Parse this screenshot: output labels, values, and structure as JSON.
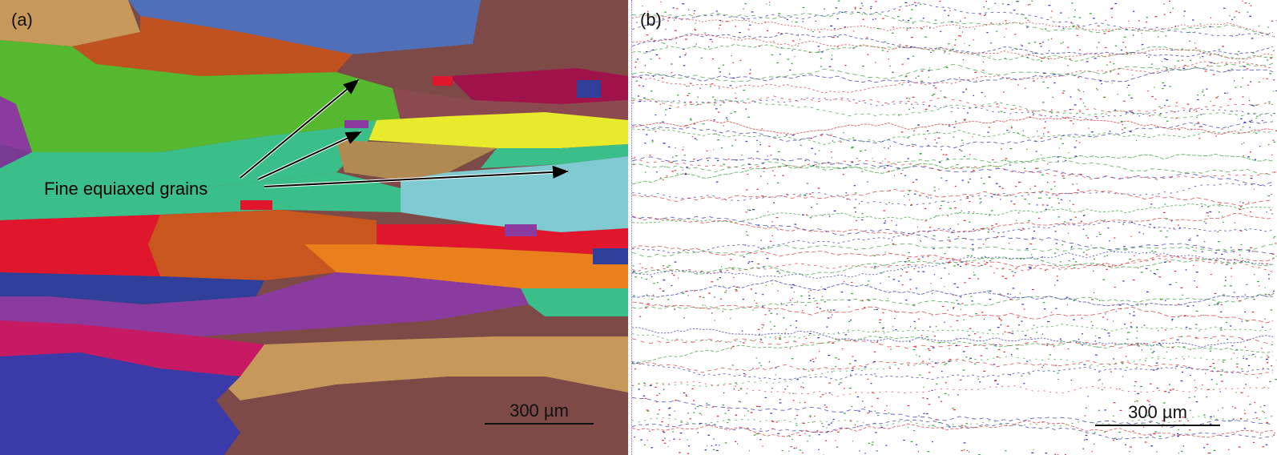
{
  "panel_a": {
    "label": "(a)",
    "annotation": "Fine equiaxed grains",
    "scale_bar": "300 µm",
    "grain_colors": [
      "#4f6fb9",
      "#c0521f",
      "#56b82f",
      "#7e4a48",
      "#a0134a",
      "#7a3a94",
      "#3bbf8a",
      "#e8eb2b",
      "#7fcbd1",
      "#e0172c",
      "#c8561f",
      "#e9801b",
      "#2f3f9a",
      "#b08a52",
      "#c9a066"
    ]
  },
  "panel_b": {
    "label": "(b)",
    "scale_bar": "300 µm",
    "boundary_colors": [
      "#d9343a",
      "#3aa03a",
      "#3434a8"
    ]
  }
}
